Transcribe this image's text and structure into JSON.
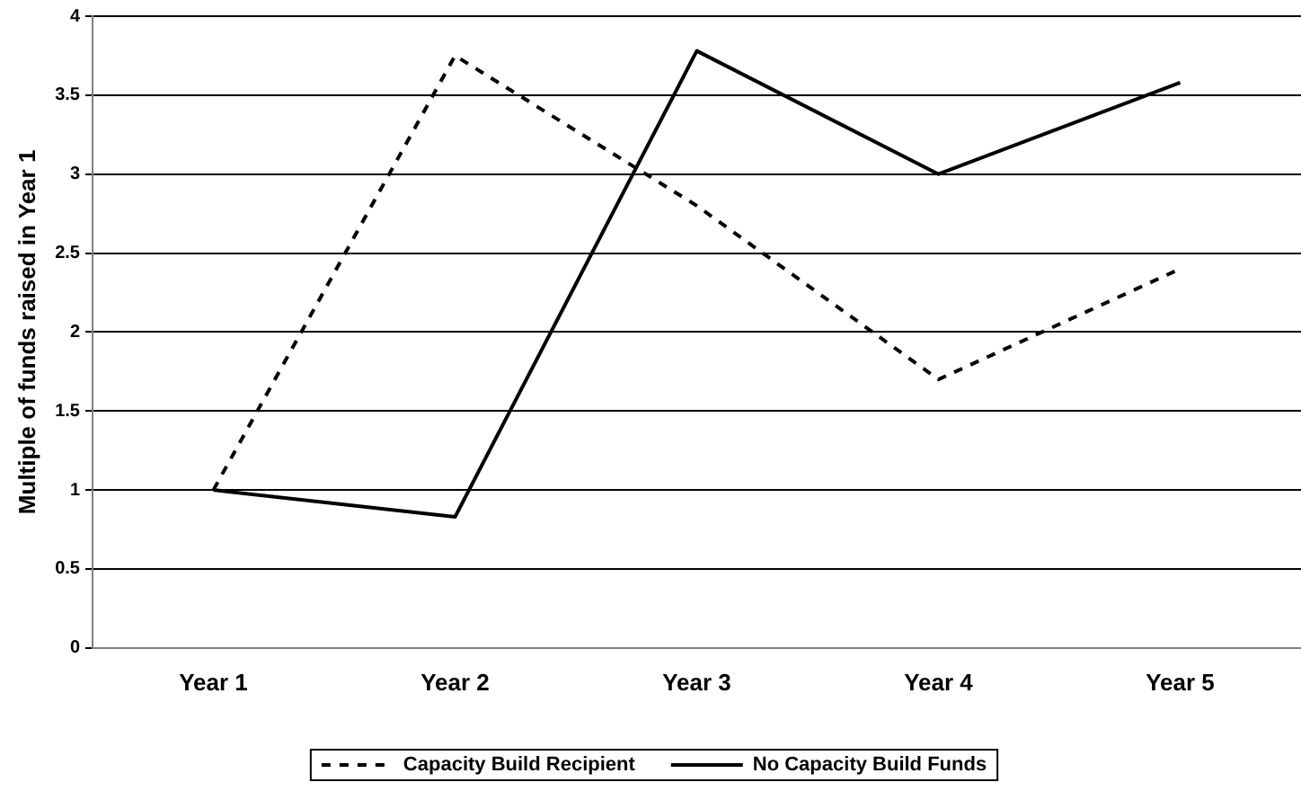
{
  "chart_data": {
    "type": "line",
    "ylabel": "Multiple of funds raised in Year 1",
    "categories": [
      "Year 1",
      "Year 2",
      "Year 3",
      "Year 4",
      "Year 5"
    ],
    "series": [
      {
        "name": "Capacity Build Recipient",
        "color": "#000000",
        "line_style": "dashed",
        "values": [
          1.0,
          3.75,
          2.8,
          1.7,
          2.4
        ]
      },
      {
        "name": "No Capacity Build Funds",
        "color": "#000000",
        "line_style": "solid",
        "values": [
          1.0,
          0.83,
          3.78,
          3.0,
          3.58
        ]
      }
    ],
    "ylim": [
      0,
      4
    ],
    "yticks": [
      0,
      0.5,
      1,
      1.5,
      2,
      2.5,
      3,
      3.5,
      4
    ],
    "grid": "y",
    "legend": "bottom",
    "marker": "none"
  }
}
